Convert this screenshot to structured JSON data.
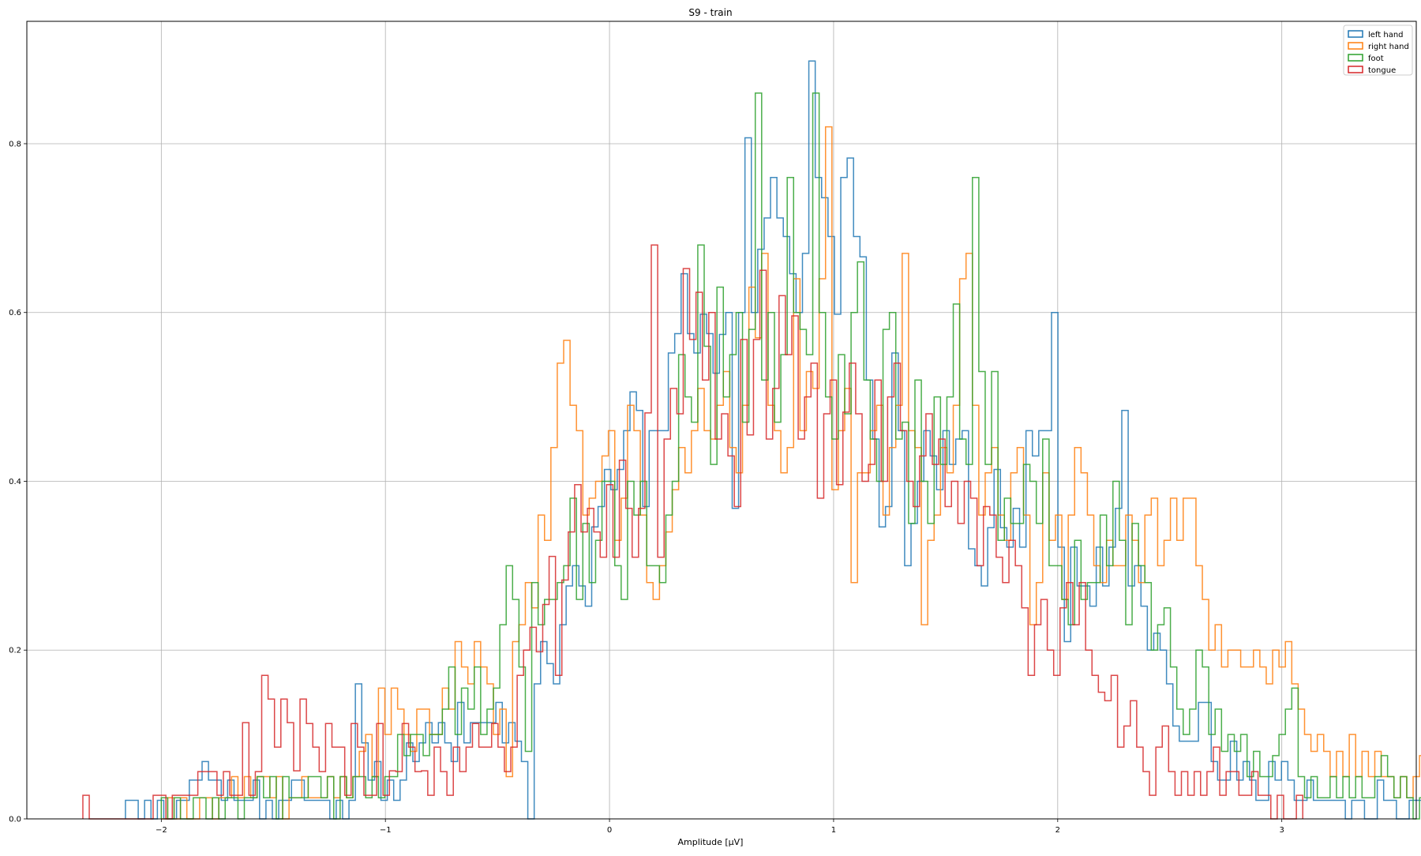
{
  "chart_data": {
    "type": "histogram",
    "title": "S9 - train",
    "xlabel": "Amplitude [μV]",
    "ylabel": "",
    "xlim": [
      -2.6,
      3.6
    ],
    "ylim": [
      0,
      0.945
    ],
    "xticks": [
      -2,
      -1,
      0,
      1,
      2,
      3
    ],
    "xtick_labels": [
      "−2",
      "−1",
      "0",
      "1",
      "2",
      "3"
    ],
    "yticks": [
      0.0,
      0.2,
      0.4,
      0.6,
      0.8
    ],
    "ytick_labels": [
      "0.0",
      "0.2",
      "0.4",
      "0.6",
      "0.8"
    ],
    "grid": true,
    "legend_position": "top-right",
    "histtype": "step",
    "bin_width": 0.0285,
    "series": [
      {
        "name": "left hand",
        "color": "#1f77b4",
        "x_start": -2.16,
        "values": [
          0.022,
          0.022,
          0,
          0.022,
          0,
          0.022,
          0,
          0,
          0.022,
          0.022,
          0.046,
          0.046,
          0.068,
          0.046,
          0.046,
          0.022,
          0.046,
          0.022,
          0.022,
          0.022,
          0.046,
          0,
          0.022,
          0,
          0.022,
          0.022,
          0.046,
          0.046,
          0.022,
          0.022,
          0.022,
          0.022,
          0,
          0.022,
          0,
          0.022,
          0.16,
          0.09,
          0.046,
          0.068,
          0.022,
          0.046,
          0.022,
          0.046,
          0.09,
          0.068,
          0.09,
          0.114,
          0.09,
          0.114,
          0.09,
          0.068,
          0.138,
          0.09,
          0.114,
          0.114,
          0.114,
          0.114,
          0.138,
          0.09,
          0.114,
          0.092,
          0.068,
          0,
          0.16,
          0.21,
          0.184,
          0.16,
          0.23,
          0.276,
          0.3,
          0.276,
          0.252,
          0.346,
          0.37,
          0.414,
          0.39,
          0.414,
          0.46,
          0.506,
          0.484,
          0.37,
          0.46,
          0.46,
          0.46,
          0.552,
          0.575,
          0.646,
          0.575,
          0.552,
          0.598,
          0.575,
          0.528,
          0.574,
          0.6,
          0.368,
          0.6,
          0.807,
          0.6,
          0.675,
          0.712,
          0.76,
          0.712,
          0.69,
          0.646,
          0.6,
          0.67,
          0.898,
          0.76,
          0.736,
          0.69,
          0.598,
          0.76,
          0.783,
          0.69,
          0.666,
          0.52,
          0.45,
          0.346,
          0.37,
          0.552,
          0.46,
          0.3,
          0.35,
          0.4,
          0.46,
          0.43,
          0.39,
          0.46,
          0.42,
          0.45,
          0.46,
          0.32,
          0.3,
          0.276,
          0.345,
          0.414,
          0.345,
          0.322,
          0.368,
          0.322,
          0.46,
          0.43,
          0.46,
          0.46,
          0.6,
          0.322,
          0.21,
          0.322,
          0.276,
          0.276,
          0.252,
          0.322,
          0.276,
          0.322,
          0.368,
          0.484,
          0.276,
          0.3,
          0.252,
          0.2,
          0.22,
          0.2,
          0.16,
          0.11,
          0.092,
          0.092,
          0.092,
          0.138,
          0.138,
          0.068,
          0.046,
          0.046,
          0.092,
          0.046,
          0.068,
          0.046,
          0.022,
          0.022,
          0.068,
          0.046,
          0.068,
          0.046,
          0.022,
          0.022,
          0.046,
          0.022,
          0.022,
          0.022,
          0.022,
          0.022,
          0,
          0.022,
          0.022,
          0,
          0,
          0.046,
          0.022,
          0.022,
          0,
          0,
          0.022,
          0.022,
          0,
          0.022,
          0.022,
          0,
          0,
          0.022,
          0.022,
          0,
          0.022,
          0,
          0,
          0,
          0,
          0.022,
          0.022,
          0,
          0.022,
          0.046,
          0,
          0.022,
          0.046,
          0.022,
          0,
          0.022,
          0.022,
          0,
          0.046,
          0.022,
          0,
          0,
          0,
          0,
          0,
          0,
          0,
          0,
          0.022
        ]
      },
      {
        "name": "right hand",
        "color": "#ff7f0e",
        "x_start": -2.0,
        "values": [
          0,
          0.025,
          0,
          0.025,
          0,
          0,
          0.025,
          0.025,
          0,
          0.025,
          0.025,
          0.05,
          0.025,
          0.05,
          0.025,
          0.05,
          0.05,
          0.025,
          0.05,
          0,
          0.025,
          0.025,
          0.05,
          0.025,
          0.025,
          0.025,
          0.05,
          0.025,
          0.05,
          0.025,
          0.05,
          0.08,
          0.1,
          0.05,
          0.155,
          0.1,
          0.155,
          0.13,
          0.1,
          0.08,
          0.13,
          0.13,
          0.1,
          0.1,
          0.155,
          0.13,
          0.21,
          0.18,
          0.16,
          0.21,
          0.18,
          0.16,
          0.1,
          0.13,
          0.05,
          0.21,
          0.23,
          0.28,
          0.25,
          0.36,
          0.33,
          0.44,
          0.54,
          0.567,
          0.49,
          0.46,
          0.36,
          0.38,
          0.4,
          0.43,
          0.46,
          0.33,
          0.38,
          0.49,
          0.46,
          0.36,
          0.28,
          0.26,
          0.3,
          0.34,
          0.39,
          0.44,
          0.41,
          0.46,
          0.51,
          0.46,
          0.45,
          0.49,
          0.53,
          0.44,
          0.41,
          0.49,
          0.63,
          0.57,
          0.67,
          0.49,
          0.46,
          0.41,
          0.44,
          0.64,
          0.46,
          0.53,
          0.51,
          0.64,
          0.82,
          0.39,
          0.46,
          0.51,
          0.28,
          0.41,
          0.41,
          0.46,
          0.49,
          0.36,
          0.44,
          0.49,
          0.67,
          0.46,
          0.44,
          0.23,
          0.33,
          0.36,
          0.44,
          0.41,
          0.49,
          0.64,
          0.67,
          0.49,
          0.36,
          0.41,
          0.44,
          0.36,
          0.33,
          0.41,
          0.44,
          0.36,
          0.23,
          0.28,
          0.41,
          0.33,
          0.36,
          0.26,
          0.36,
          0.44,
          0.41,
          0.36,
          0.3,
          0.28,
          0.33,
          0.3,
          0.3,
          0.36,
          0.33,
          0.28,
          0.36,
          0.38,
          0.3,
          0.33,
          0.38,
          0.33,
          0.38,
          0.38,
          0.3,
          0.26,
          0.2,
          0.23,
          0.18,
          0.2,
          0.2,
          0.18,
          0.18,
          0.2,
          0.18,
          0.16,
          0.2,
          0.18,
          0.21,
          0.16,
          0.13,
          0.1,
          0.08,
          0.1,
          0.08,
          0.05,
          0.08,
          0.05,
          0.1,
          0.05,
          0.08,
          0.05,
          0.08,
          0.05,
          0.05,
          0.025,
          0.05,
          0.025,
          0.05,
          0.075,
          0.05,
          0.025,
          0.05,
          0.025,
          0.05,
          0.025,
          0.05,
          0.05,
          0.025,
          0.075,
          0.05,
          0.025,
          0.025,
          0.025,
          0,
          0.025,
          0.05,
          0.025,
          0,
          0.05,
          0.025,
          0,
          0.025,
          0.025,
          0,
          0,
          0.025,
          0.025,
          0.025,
          0,
          0.05,
          0.025,
          0.025
        ]
      },
      {
        "name": "foot",
        "color": "#2ca02c",
        "x_start": -2.0,
        "values": [
          0.025,
          0,
          0.025,
          0,
          0,
          0.025,
          0.025,
          0,
          0.025,
          0,
          0.025,
          0.025,
          0,
          0.025,
          0.025,
          0.05,
          0.025,
          0.05,
          0,
          0.05,
          0.025,
          0.025,
          0.025,
          0.05,
          0.05,
          0.025,
          0.05,
          0,
          0.05,
          0.025,
          0.05,
          0.05,
          0.025,
          0.05,
          0.025,
          0.05,
          0.05,
          0.1,
          0.075,
          0.1,
          0.1,
          0.075,
          0.1,
          0.1,
          0.13,
          0.18,
          0.1,
          0.155,
          0.13,
          0.18,
          0.1,
          0.13,
          0.155,
          0.23,
          0.3,
          0.26,
          0.18,
          0.08,
          0.28,
          0.23,
          0.26,
          0.26,
          0.28,
          0.3,
          0.38,
          0.26,
          0.35,
          0.28,
          0.33,
          0.4,
          0.4,
          0.3,
          0.26,
          0.4,
          0.36,
          0.4,
          0.3,
          0.3,
          0.28,
          0.36,
          0.4,
          0.55,
          0.5,
          0.47,
          0.68,
          0.56,
          0.42,
          0.63,
          0.5,
          0.55,
          0.6,
          0.47,
          0.58,
          0.86,
          0.52,
          0.6,
          0.47,
          0.55,
          0.76,
          0.6,
          0.58,
          0.55,
          0.86,
          0.6,
          0.5,
          0.45,
          0.55,
          0.48,
          0.6,
          0.66,
          0.52,
          0.45,
          0.4,
          0.58,
          0.6,
          0.45,
          0.47,
          0.35,
          0.52,
          0.4,
          0.35,
          0.5,
          0.42,
          0.5,
          0.61,
          0.45,
          0.42,
          0.76,
          0.53,
          0.42,
          0.53,
          0.33,
          0.38,
          0.35,
          0.35,
          0.42,
          0.4,
          0.35,
          0.45,
          0.3,
          0.3,
          0.26,
          0.23,
          0.33,
          0.26,
          0.28,
          0.28,
          0.36,
          0.3,
          0.4,
          0.33,
          0.23,
          0.35,
          0.3,
          0.28,
          0.2,
          0.23,
          0.25,
          0.18,
          0.13,
          0.1,
          0.13,
          0.2,
          0.18,
          0.1,
          0.13,
          0.08,
          0.1,
          0.08,
          0.1,
          0.05,
          0.08,
          0.05,
          0.05,
          0.075,
          0.1,
          0.13,
          0.155,
          0.05,
          0.025,
          0.05,
          0.025,
          0.025,
          0.05,
          0.025,
          0.05,
          0.025,
          0.05,
          0.025,
          0.025,
          0.05,
          0.075,
          0.05,
          0.025,
          0.05,
          0.025,
          0,
          0.025,
          0.025,
          0,
          0.025,
          0.025,
          0,
          0.025,
          0,
          0,
          0.025,
          0.025,
          0,
          0,
          0.025,
          0,
          0.025
        ]
      },
      {
        "name": "tongue",
        "color": "#d62728",
        "x_start": -2.35,
        "values": [
          0.028,
          0,
          0,
          0,
          0,
          0,
          0,
          0,
          0,
          0,
          0,
          0.028,
          0.028,
          0,
          0.028,
          0.028,
          0.028,
          0.028,
          0.056,
          0.056,
          0.056,
          0.028,
          0.056,
          0.028,
          0.028,
          0.114,
          0.028,
          0.056,
          0.17,
          0.142,
          0.085,
          0.142,
          0.114,
          0.057,
          0.142,
          0.113,
          0.085,
          0.056,
          0.113,
          0.085,
          0.085,
          0.028,
          0.113,
          0.085,
          0.028,
          0.028,
          0.113,
          0.028,
          0.057,
          0.056,
          0.113,
          0.085,
          0.056,
          0.057,
          0.028,
          0.085,
          0.056,
          0.028,
          0.085,
          0.056,
          0.085,
          0.113,
          0.085,
          0.085,
          0.113,
          0.085,
          0.056,
          0.085,
          0.17,
          0.2,
          0.227,
          0.198,
          0.254,
          0.311,
          0.17,
          0.283,
          0.34,
          0.396,
          0.34,
          0.368,
          0.34,
          0.31,
          0.396,
          0.31,
          0.425,
          0.368,
          0.31,
          0.368,
          0.481,
          0.68,
          0.31,
          0.45,
          0.51,
          0.48,
          0.652,
          0.568,
          0.624,
          0.52,
          0.6,
          0.45,
          0.48,
          0.43,
          0.37,
          0.568,
          0.455,
          0.568,
          0.65,
          0.45,
          0.51,
          0.62,
          0.55,
          0.596,
          0.45,
          0.5,
          0.54,
          0.38,
          0.48,
          0.52,
          0.396,
          0.482,
          0.54,
          0.48,
          0.4,
          0.42,
          0.52,
          0.4,
          0.5,
          0.54,
          0.46,
          0.4,
          0.37,
          0.43,
          0.48,
          0.42,
          0.45,
          0.37,
          0.4,
          0.35,
          0.4,
          0.38,
          0.3,
          0.37,
          0.36,
          0.31,
          0.28,
          0.33,
          0.3,
          0.25,
          0.17,
          0.23,
          0.26,
          0.2,
          0.17,
          0.25,
          0.28,
          0.23,
          0.28,
          0.2,
          0.17,
          0.15,
          0.14,
          0.17,
          0.085,
          0.11,
          0.14,
          0.085,
          0.056,
          0.028,
          0.085,
          0.11,
          0.056,
          0.028,
          0.056,
          0.028,
          0.056,
          0.028,
          0.056,
          0.085,
          0.028,
          0.056,
          0.056,
          0.028,
          0.028,
          0.056,
          0.028,
          0.028,
          0,
          0.028,
          0,
          0,
          0.028
        ]
      }
    ]
  }
}
